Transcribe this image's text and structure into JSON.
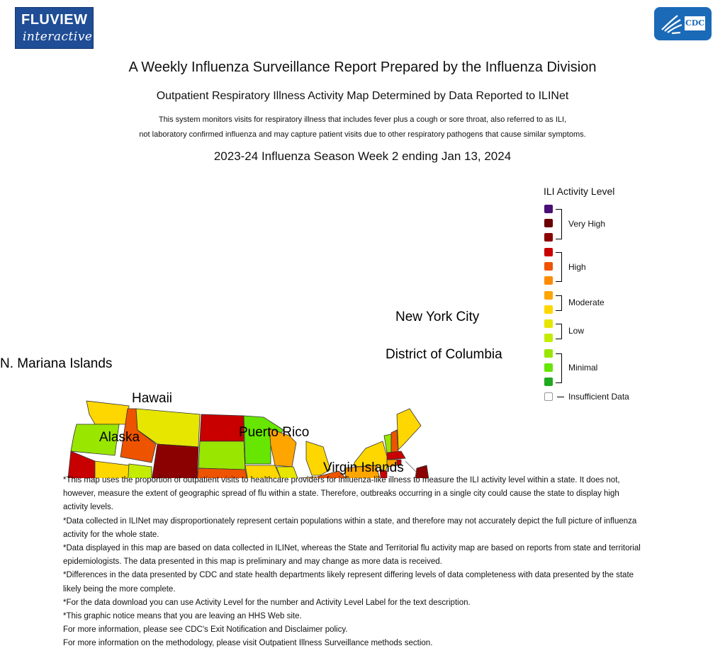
{
  "logo": {
    "line1": "FLUVIEW",
    "line2": "interactive"
  },
  "cdc": {
    "label": "CDC"
  },
  "header": {
    "title": "A Weekly Influenza Surveillance Report Prepared by the Influenza Division",
    "subtitle": "Outpatient Respiratory Illness Activity Map Determined by Data Reported to ILINet",
    "desc1": "This system monitors visits for respiratory illness that includes fever plus a cough or sore throat, also referred to as ILI,",
    "desc2": "not laboratory confirmed influenza and may capture patient visits due to other respiratory pathogens that cause similar symptoms.",
    "week": "2023-24 Influenza Season Week 2 ending Jan 13, 2024"
  },
  "map_labels": {
    "nyc": "New York City",
    "dc": "District of Columbia",
    "nmi": "N. Mariana Islands",
    "hawaii": "Hawaii",
    "alaska": "Alaska",
    "pr": "Puerto Rico",
    "vi": "Virgin Islands"
  },
  "legend": {
    "title": "ILI Activity Level",
    "very_high": "Very High",
    "high": "High",
    "moderate": "Moderate",
    "low": "Low",
    "minimal": "Minimal",
    "insufficient": "Insufficient Data",
    "colors": [
      "#4a0f75",
      "#6b0000",
      "#8b0000",
      "#c80000",
      "#ee5300",
      "#ff8c00",
      "#ffa500",
      "#ffd700",
      "#e6e600",
      "#c4ec00",
      "#99e600",
      "#66e600",
      "#1faa1f",
      "#ffffff"
    ]
  },
  "notes": [
    "*This map uses the proportion of outpatient visits to healthcare providers for influenza-like illness to measure the ILI activity level within a state. It does not, however, measure the extent of geographic spread of flu within a state. Therefore, outbreaks occurring in a single city could cause the state to display high activity levels.",
    "*Data collected in ILINet may disproportionately represent certain populations within a state, and therefore may not accurately depict the full picture of influenza activity for the whole state.",
    "*Data displayed in this map are based on data collected in ILINet, whereas the State and Territorial flu activity map are based on reports from state and territorial epidemiologists. The data presented in this map is preliminary and may change as more data is received.",
    "*Differences in the data presented by CDC and state health departments likely represent differing levels of data completeness with data presented by the state likely being the more complete.",
    "*For the data download you can use Activity Level for the number and Activity Level Label for the text description.",
    "*This graphic notice means that you are leaving an HHS Web site.",
    "For more information, please see CDC's Exit Notification and Disclaimer policy.",
    "For more information on the methodology, please visit Outpatient Illness Surveillance methods section."
  ]
}
